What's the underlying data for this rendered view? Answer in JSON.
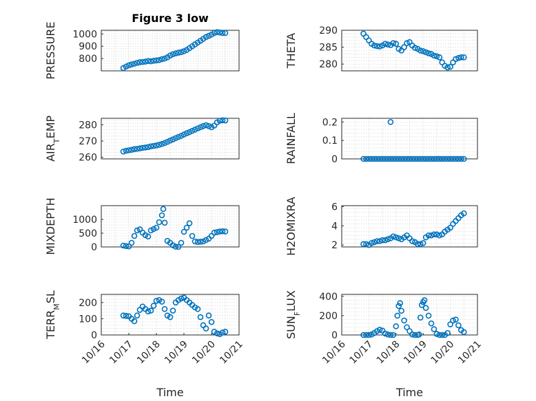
{
  "figure": {
    "title": "Figure 3 low",
    "marker_color": "#0072BD"
  },
  "chart_data": [
    {
      "type": "scatter",
      "ylabel": "PRESSURE",
      "xlabel": "",
      "xlim": [
        0,
        5
      ],
      "ylim": [
        700,
        1030
      ],
      "yticks": [
        800,
        900,
        1000
      ],
      "xticks": [],
      "grid": true,
      "x": [
        0.8,
        0.9,
        1.0,
        1.1,
        1.2,
        1.3,
        1.4,
        1.5,
        1.6,
        1.7,
        1.8,
        1.9,
        2.0,
        2.1,
        2.2,
        2.3,
        2.4,
        2.5,
        2.6,
        2.7,
        2.8,
        2.9,
        3.0,
        3.1,
        3.2,
        3.3,
        3.4,
        3.5,
        3.6,
        3.7,
        3.8,
        3.9,
        4.0,
        4.1,
        4.2,
        4.3,
        4.4,
        4.5
      ],
      "y": [
        723,
        735,
        745,
        752,
        758,
        765,
        770,
        772,
        775,
        780,
        778,
        782,
        785,
        788,
        795,
        800,
        810,
        825,
        835,
        842,
        848,
        852,
        860,
        870,
        885,
        900,
        915,
        930,
        945,
        960,
        975,
        985,
        995,
        1008,
        1015,
        1012,
        1008,
        1008
      ]
    },
    {
      "type": "scatter",
      "ylabel": "THETA",
      "xlabel": "",
      "xlim": [
        0,
        5
      ],
      "ylim": [
        278,
        290
      ],
      "yticks": [
        280,
        285,
        290
      ],
      "xticks": [],
      "grid": true,
      "x": [
        0.8,
        0.9,
        1.0,
        1.1,
        1.2,
        1.3,
        1.4,
        1.5,
        1.6,
        1.7,
        1.8,
        1.9,
        2.0,
        2.1,
        2.2,
        2.3,
        2.4,
        2.5,
        2.6,
        2.7,
        2.8,
        2.9,
        3.0,
        3.1,
        3.2,
        3.3,
        3.4,
        3.5,
        3.6,
        3.7,
        3.8,
        3.9,
        4.0,
        4.1,
        4.2,
        4.3,
        4.4,
        4.5
      ],
      "y": [
        289,
        288,
        287,
        286,
        285.5,
        285.3,
        285.2,
        285.5,
        286,
        285.8,
        285.6,
        286.2,
        286,
        284.5,
        284,
        285,
        286.2,
        286.5,
        285.5,
        284.8,
        284.5,
        284,
        283.8,
        283.5,
        283.2,
        283,
        282.5,
        282.3,
        282,
        280.5,
        279.5,
        279,
        279.2,
        280.5,
        281.5,
        281.8,
        282,
        282
      ]
    },
    {
      "type": "scatter",
      "ylabel": "AIR_TEMP",
      "xlabel": "",
      "xlim": [
        0,
        5
      ],
      "ylim": [
        259,
        284
      ],
      "yticks": [
        260,
        270,
        280
      ],
      "xticks": [],
      "grid": true,
      "x": [
        0.8,
        0.9,
        1.0,
        1.1,
        1.2,
        1.3,
        1.4,
        1.5,
        1.6,
        1.7,
        1.8,
        1.9,
        2.0,
        2.1,
        2.2,
        2.3,
        2.4,
        2.5,
        2.6,
        2.7,
        2.8,
        2.9,
        3.0,
        3.1,
        3.2,
        3.3,
        3.4,
        3.5,
        3.6,
        3.7,
        3.8,
        3.9,
        4.0,
        4.1,
        4.2,
        4.3,
        4.4,
        4.5
      ],
      "y": [
        263.5,
        264,
        264.3,
        264.6,
        265,
        265.2,
        265.5,
        265.8,
        266,
        266.3,
        266.7,
        267,
        267.3,
        267.7,
        268.2,
        268.8,
        269.5,
        270.3,
        271,
        271.8,
        272.5,
        273.2,
        274,
        274.8,
        275.5,
        276.3,
        277,
        277.8,
        278.5,
        279.2,
        279.8,
        279.2,
        278.5,
        279.5,
        281.5,
        282.5,
        282.8,
        282.7
      ]
    },
    {
      "type": "scatter",
      "ylabel": "RAINFALL",
      "xlabel": "",
      "xlim": [
        0,
        5
      ],
      "ylim": [
        0,
        0.22
      ],
      "yticks": [
        0,
        0.1,
        0.2
      ],
      "xticks": [],
      "grid": true,
      "x": [
        0.8,
        0.9,
        1.0,
        1.1,
        1.2,
        1.3,
        1.4,
        1.5,
        1.6,
        1.7,
        1.8,
        1.9,
        2.0,
        2.1,
        2.2,
        2.3,
        2.4,
        2.5,
        2.6,
        2.7,
        2.8,
        2.9,
        3.0,
        3.1,
        3.2,
        3.3,
        3.4,
        3.5,
        3.6,
        3.7,
        3.8,
        3.9,
        4.0,
        4.1,
        4.2,
        4.3,
        4.4,
        4.5,
        1.8
      ],
      "y": [
        0,
        0,
        0,
        0,
        0,
        0,
        0,
        0,
        0,
        0,
        0,
        0,
        0,
        0,
        0,
        0,
        0,
        0,
        0,
        0,
        0,
        0,
        0,
        0,
        0,
        0,
        0,
        0,
        0,
        0,
        0,
        0,
        0,
        0,
        0,
        0,
        0,
        0,
        0.2
      ]
    },
    {
      "type": "scatter",
      "ylabel": "MIXDEPTH",
      "xlabel": "",
      "xlim": [
        0,
        5
      ],
      "ylim": [
        0,
        1500
      ],
      "yticks": [
        0,
        500,
        1000
      ],
      "xticks": [],
      "grid": true,
      "x": [
        0.8,
        0.9,
        1.0,
        1.1,
        1.2,
        1.3,
        1.4,
        1.5,
        1.6,
        1.7,
        1.8,
        1.9,
        2.0,
        2.1,
        2.2,
        2.25,
        2.3,
        2.4,
        2.5,
        2.6,
        2.7,
        2.8,
        2.9,
        3.0,
        3.1,
        3.2,
        3.3,
        3.4,
        3.5,
        3.6,
        3.7,
        3.8,
        3.9,
        4.0,
        4.1,
        4.2,
        4.3,
        4.4,
        4.5
      ],
      "y": [
        50,
        30,
        20,
        150,
        400,
        600,
        640,
        520,
        430,
        380,
        600,
        650,
        700,
        900,
        1150,
        1380,
        880,
        220,
        150,
        60,
        10,
        0,
        150,
        550,
        700,
        860,
        400,
        200,
        180,
        190,
        200,
        250,
        300,
        400,
        520,
        540,
        560,
        570,
        560
      ]
    },
    {
      "type": "scatter",
      "ylabel": "H2OMIXRA",
      "xlabel": "",
      "xlim": [
        0,
        5
      ],
      "ylim": [
        1.8,
        6.1
      ],
      "yticks": [
        2,
        4,
        6
      ],
      "xticks": [],
      "grid": true,
      "x": [
        0.8,
        0.9,
        1.0,
        1.1,
        1.2,
        1.3,
        1.4,
        1.5,
        1.6,
        1.7,
        1.8,
        1.9,
        2.0,
        2.1,
        2.2,
        2.3,
        2.4,
        2.5,
        2.6,
        2.7,
        2.8,
        2.9,
        3.0,
        3.1,
        3.2,
        3.3,
        3.4,
        3.5,
        3.6,
        3.7,
        3.8,
        3.9,
        4.0,
        4.1,
        4.2,
        4.3,
        4.4,
        4.5
      ],
      "y": [
        2.1,
        2.1,
        2.0,
        2.2,
        2.3,
        2.4,
        2.4,
        2.5,
        2.5,
        2.6,
        2.7,
        2.9,
        2.8,
        2.7,
        2.6,
        2.8,
        3.0,
        2.7,
        2.4,
        2.3,
        2.1,
        2.1,
        2.2,
        2.8,
        3.0,
        3.0,
        3.1,
        3.1,
        3.0,
        3.1,
        3.4,
        3.6,
        3.8,
        4.2,
        4.5,
        4.8,
        5.1,
        5.3
      ]
    },
    {
      "type": "scatter",
      "ylabel": "TERR_MSL",
      "xlabel": "Time",
      "xlim": [
        0,
        5
      ],
      "ylim": [
        0,
        250
      ],
      "yticks": [
        0,
        100,
        200
      ],
      "xticks": [
        "10/16",
        "10/17",
        "10/18",
        "10/19",
        "10/20",
        "10/21"
      ],
      "grid": true,
      "x": [
        0.8,
        0.9,
        1.0,
        1.1,
        1.2,
        1.3,
        1.4,
        1.5,
        1.6,
        1.7,
        1.8,
        1.9,
        2.0,
        2.1,
        2.2,
        2.3,
        2.4,
        2.5,
        2.6,
        2.7,
        2.8,
        2.9,
        3.0,
        3.1,
        3.2,
        3.3,
        3.4,
        3.5,
        3.6,
        3.7,
        3.8,
        3.9,
        4.0,
        4.1,
        4.2,
        4.3,
        4.4,
        4.5
      ],
      "y": [
        120,
        118,
        115,
        100,
        85,
        120,
        155,
        175,
        160,
        145,
        150,
        180,
        210,
        215,
        205,
        160,
        120,
        110,
        150,
        200,
        215,
        225,
        230,
        215,
        200,
        185,
        170,
        160,
        110,
        60,
        40,
        120,
        80,
        20,
        10,
        5,
        15,
        20
      ]
    },
    {
      "type": "scatter",
      "ylabel": "SUN_FLUX",
      "xlabel": "Time",
      "xlim": [
        0,
        5
      ],
      "ylim": [
        0,
        420
      ],
      "yticks": [
        0,
        200,
        400
      ],
      "xticks": [
        "10/16",
        "10/17",
        "10/18",
        "10/19",
        "10/20",
        "10/21"
      ],
      "grid": true,
      "x": [
        0.8,
        0.9,
        1.0,
        1.1,
        1.2,
        1.3,
        1.4,
        1.5,
        1.6,
        1.7,
        1.8,
        1.9,
        2.0,
        2.05,
        2.1,
        2.15,
        2.2,
        2.3,
        2.4,
        2.5,
        2.6,
        2.7,
        2.8,
        2.85,
        2.9,
        2.95,
        3.0,
        3.05,
        3.1,
        3.2,
        3.3,
        3.4,
        3.5,
        3.6,
        3.7,
        3.8,
        3.9,
        4.0,
        4.1,
        4.2,
        4.3,
        4.4,
        4.5
      ],
      "y": [
        0,
        0,
        0,
        5,
        20,
        40,
        55,
        45,
        15,
        5,
        0,
        0,
        90,
        200,
        300,
        330,
        250,
        150,
        80,
        40,
        5,
        0,
        0,
        5,
        180,
        310,
        340,
        360,
        280,
        200,
        120,
        60,
        10,
        0,
        0,
        0,
        20,
        110,
        150,
        160,
        100,
        50,
        30
      ]
    }
  ]
}
